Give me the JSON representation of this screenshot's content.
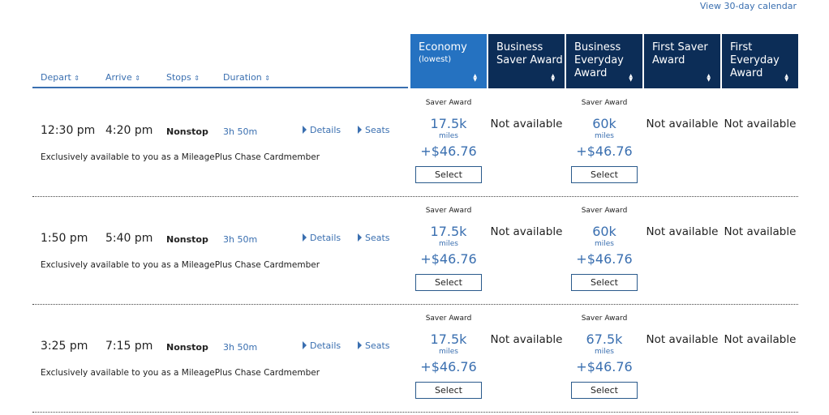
{
  "top_link": "View 30-day calendar",
  "columns_left": [
    {
      "label": "Depart"
    },
    {
      "label": "Arrive"
    },
    {
      "label": "Stops"
    },
    {
      "label": "Duration"
    }
  ],
  "fare_columns": [
    {
      "title": "Economy",
      "sub": "(lowest)",
      "active": true
    },
    {
      "title": "Business Saver Award"
    },
    {
      "title": "Business Everyday Award"
    },
    {
      "title": "First Saver Award"
    },
    {
      "title": "First Everyday Award"
    }
  ],
  "sort_icon": "sort-updown-icon",
  "labels": {
    "details": "Details",
    "seats": "Seats",
    "select": "Select",
    "saver": "Saver Award",
    "miles": "miles",
    "na": "Not available"
  },
  "flights": [
    {
      "depart": "12:30 pm",
      "arrive": "4:20 pm",
      "stops": "Nonstop",
      "duration": "3h 50m",
      "note": "Exclusively available to you as a MileagePlus Chase Cardmember",
      "economy": {
        "miles": "17.5k",
        "price": "+$46.76"
      },
      "business_everyday": {
        "miles": "60k",
        "price": "+$46.76"
      }
    },
    {
      "depart": "1:50 pm",
      "arrive": "5:40 pm",
      "stops": "Nonstop",
      "duration": "3h 50m",
      "note": "Exclusively available to you as a MileagePlus Chase Cardmember",
      "economy": {
        "miles": "17.5k",
        "price": "+$46.76"
      },
      "business_everyday": {
        "miles": "60k",
        "price": "+$46.76"
      }
    },
    {
      "depart": "3:25 pm",
      "arrive": "7:15 pm",
      "stops": "Nonstop",
      "duration": "3h 50m",
      "note": "Exclusively available to you as a MileagePlus Chase Cardmember",
      "economy": {
        "miles": "17.5k",
        "price": "+$46.76"
      },
      "business_everyday": {
        "miles": "67.5k",
        "price": "+$46.76"
      }
    }
  ],
  "colors": {
    "nav": "#0c2d57",
    "active": "#2572c1",
    "link": "#3a6fb0"
  }
}
